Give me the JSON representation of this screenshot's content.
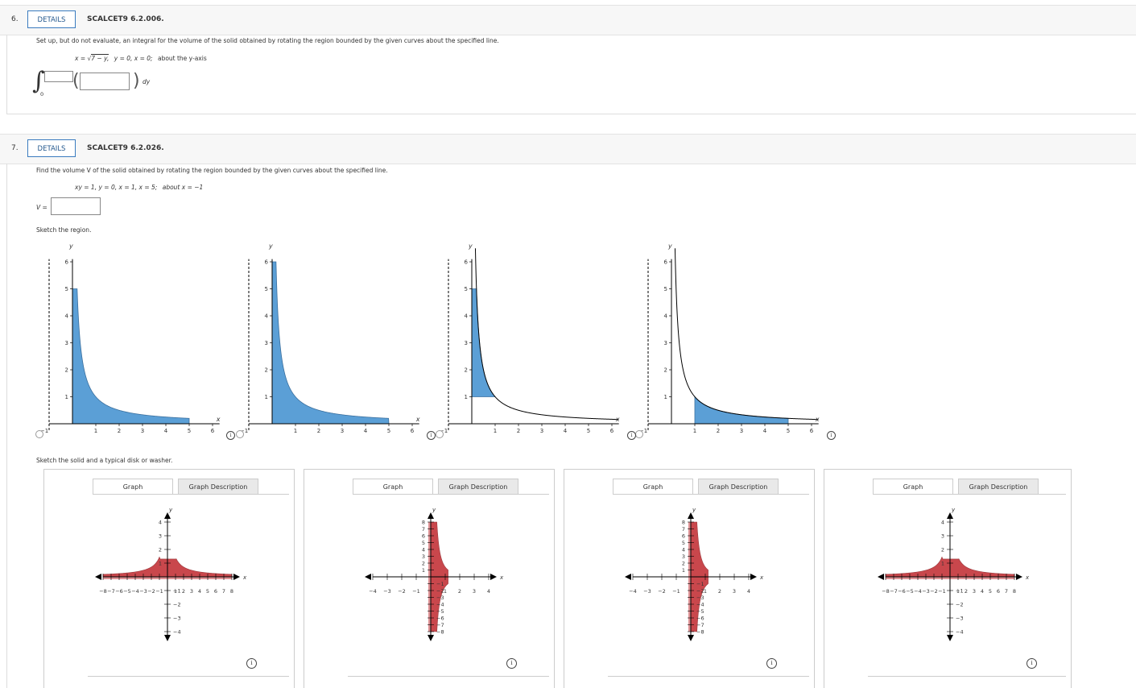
{
  "q6": {
    "number": "6.",
    "details_label": "DETAILS",
    "code": "SCALCET9 6.2.006.",
    "prompt": "Set up, but do not evaluate, an integral for the volume of the solid obtained by rotating the region bounded by the given curves about the specified line.",
    "eq_lhs": "x =",
    "eq_radicand": "7 − y,",
    "eq_rest": "y = 0,   x = 0;",
    "eq_axis": "about the y-axis",
    "lower_limit": "0",
    "differential": "dy"
  },
  "q7": {
    "number": "7.",
    "details_label": "DETAILS",
    "code": "SCALCET9 6.2.026.",
    "prompt": "Find the volume V of the solid obtained by rotating the region bounded by the given curves about the specified line.",
    "equation": "xy = 1,   y = 0,   x = 1,   x = 5;",
    "eq_axis": "about x = −1",
    "v_label": "V =",
    "sketch_region_label": "Sketch the region.",
    "sketch_solid_label": "Sketch the solid and a typical disk or washer.",
    "graph_tab": "Graph",
    "description_tab": "Graph Description",
    "info_glyph": "i"
  },
  "colors": {
    "accent": "#3a7bbf",
    "fill_blue": "#5b9fd6",
    "solid_red": "#c0282d"
  },
  "chart_data": [
    {
      "type": "area",
      "curve": "y = 1/x",
      "xlim": [
        -1,
        6.3
      ],
      "ylim": [
        0,
        6
      ],
      "xticks": [
        -1,
        1,
        2,
        3,
        4,
        5,
        6
      ],
      "yticks": [
        1,
        2,
        3,
        4,
        5,
        6
      ],
      "shaded_x_range": [
        0,
        5
      ],
      "shaded_y_cap": 5,
      "x_axis_label": "x",
      "y_axis_label": "y"
    },
    {
      "type": "area",
      "curve": "y = 1/x",
      "xlim": [
        -1,
        6.3
      ],
      "ylim": [
        0,
        6
      ],
      "xticks": [
        -1,
        1,
        2,
        3,
        4,
        5,
        6
      ],
      "yticks": [
        1,
        2,
        3,
        4,
        5,
        6
      ],
      "shaded_x_range": [
        0,
        5
      ],
      "shaded_y_cap": 6,
      "x_axis_label": "x",
      "y_axis_label": "y"
    },
    {
      "type": "area",
      "curve": "y = 1/x",
      "xlim": [
        -1,
        6.3
      ],
      "ylim": [
        0,
        6
      ],
      "xticks": [
        -1,
        1,
        2,
        3,
        4,
        5,
        6
      ],
      "yticks": [
        1,
        2,
        3,
        4,
        5,
        6
      ],
      "shaded_region": "0 ≤ x ≤ 1, 1 ≤ y ≤ 5 (left of curve)",
      "x_axis_label": "x",
      "y_axis_label": "y"
    },
    {
      "type": "area",
      "curve": "y = 1/x",
      "xlim": [
        -1,
        6.3
      ],
      "ylim": [
        0,
        6
      ],
      "xticks": [
        -1,
        1,
        2,
        3,
        4,
        5,
        6
      ],
      "yticks": [
        1,
        2,
        3,
        4,
        5,
        6
      ],
      "shaded_x_range": [
        1,
        5
      ],
      "x_axis_label": "x",
      "y_axis_label": "y"
    }
  ]
}
